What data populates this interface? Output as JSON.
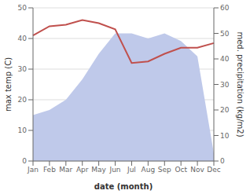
{
  "chart_data": {
    "type": "line",
    "categories": [
      "Jan",
      "Feb",
      "Mar",
      "Apr",
      "May",
      "Jun",
      "Jul",
      "Aug",
      "Sep",
      "Oct",
      "Nov",
      "Dec"
    ],
    "series": [
      {
        "type": "area",
        "color": "#bfc9ea",
        "axis": "y2",
        "values": [
          18,
          20,
          24,
          32,
          42,
          50,
          50,
          48,
          50,
          47,
          41,
          3
        ]
      },
      {
        "type": "line",
        "color": "#c0504d",
        "values": [
          41,
          44,
          44.5,
          46,
          45,
          43,
          32,
          32.5,
          35,
          37,
          37,
          38.5
        ]
      }
    ],
    "xlabel": "date (month)",
    "ylabel": "max temp (C)",
    "y2label": "med. precipitation (kg/m2)",
    "ylim": [
      0,
      50
    ],
    "yticks": [
      0,
      10,
      20,
      30,
      40,
      50
    ],
    "y2lim": [
      0,
      60
    ],
    "y2ticks": [
      0,
      10,
      20,
      30,
      40,
      50,
      60
    ],
    "grid": true
  }
}
